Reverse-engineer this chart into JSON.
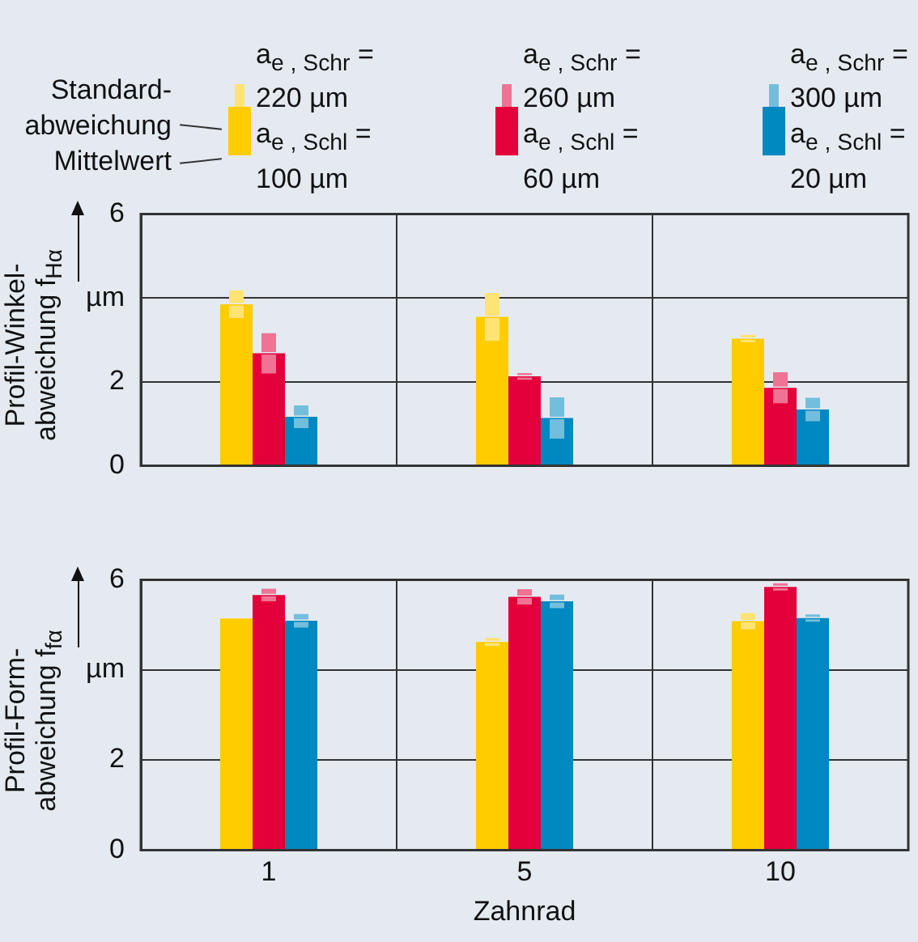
{
  "chart_data": [
    {
      "type": "bar",
      "ylabel": "Profil-Winkel-\nabweichung f$_{Hα}$",
      "categories": [
        "1",
        "5",
        "10"
      ],
      "series": [
        {
          "name": "a$_{e , Schr}$ =\n220 µm\na$_{e , Schl}$ =\n100 µm",
          "color": "#ffcc00",
          "values": [
            3.85,
            3.55,
            3.03
          ],
          "errors": [
            0.33,
            0.57,
            0.09
          ]
        },
        {
          "name": "a$_{e , Schr}$ =\n260 µm\na$_{e , Schl}$ =\n60 µm",
          "color": "#e4003a",
          "values": [
            2.68,
            2.13,
            1.86
          ],
          "errors": [
            0.48,
            0.08,
            0.37
          ]
        },
        {
          "name": "a$_{e , Schr}$ =\n300 µm\na$_{e , Schl}$ =\n20 µm",
          "color": "#0088c0",
          "values": [
            1.17,
            1.14,
            1.34
          ],
          "errors": [
            0.27,
            0.49,
            0.28
          ]
        }
      ],
      "ylim": [
        0,
        6
      ],
      "yticks": [
        0,
        2,
        {
          "value": 4,
          "label": "µm"
        },
        6
      ],
      "grid": true,
      "legend": "top",
      "tick_labels": "y",
      "annotations": [
        "Standard-\nabweichung",
        "Mittelwert"
      ]
    },
    {
      "type": "bar",
      "ylabel": "Profil-Form-\nabweichung f$_{fα}$",
      "xlabel": "Zahnrad",
      "categories": [
        "1",
        "5",
        "10"
      ],
      "series": [
        {
          "color": "#ffcc00",
          "values": [
            5.14,
            4.62,
            5.08
          ],
          "errors": [
            null,
            0.09,
            0.18
          ]
        },
        {
          "color": "#e4003a",
          "values": [
            5.66,
            5.62,
            5.84
          ],
          "errors": [
            0.14,
            0.17,
            0.08
          ]
        },
        {
          "color": "#0088c0",
          "values": [
            5.09,
            5.52,
            5.15
          ],
          "errors": [
            0.15,
            0.15,
            0.08
          ]
        }
      ],
      "ylim": [
        0,
        6
      ],
      "yticks": [
        0,
        2,
        {
          "value": 4,
          "label": "µm"
        },
        6
      ],
      "grid": true
    }
  ]
}
